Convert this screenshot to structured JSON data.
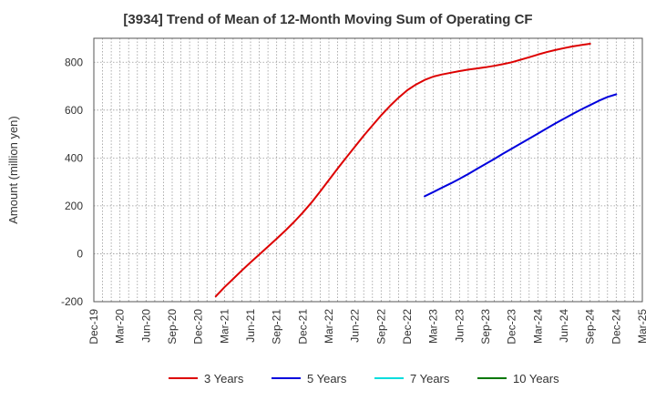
{
  "chart_data": {
    "type": "line",
    "title": "[3934]  Trend of Mean of 12-Month Moving Sum of Operating CF",
    "ylabel": "Amount (million yen)",
    "xlabel": "",
    "ylim": [
      -200,
      900
    ],
    "yticks": [
      -200,
      0,
      200,
      400,
      600,
      800
    ],
    "xticks": [
      "Dec-19",
      "Mar-20",
      "Jun-20",
      "Sep-20",
      "Dec-20",
      "Mar-21",
      "Jun-21",
      "Sep-21",
      "Dec-21",
      "Mar-22",
      "Jun-22",
      "Sep-22",
      "Dec-22",
      "Mar-23",
      "Jun-23",
      "Sep-23",
      "Dec-23",
      "Mar-24",
      "Jun-24",
      "Sep-24",
      "Dec-24",
      "Mar-25"
    ],
    "grid": true,
    "legend_position": "bottom",
    "series": [
      {
        "name": "3 Years",
        "color": "#dd0000",
        "points": [
          [
            "Feb-21",
            -178
          ],
          [
            "Mar-21",
            -140
          ],
          [
            "Apr-21",
            -105
          ],
          [
            "May-21",
            -70
          ],
          [
            "Jun-21",
            -36
          ],
          [
            "Jul-21",
            -3
          ],
          [
            "Aug-21",
            30
          ],
          [
            "Sep-21",
            63
          ],
          [
            "Oct-21",
            97
          ],
          [
            "Nov-21",
            133
          ],
          [
            "Dec-21",
            172
          ],
          [
            "Jan-22",
            214
          ],
          [
            "Feb-22",
            260
          ],
          [
            "Mar-22",
            308
          ],
          [
            "Apr-22",
            356
          ],
          [
            "May-22",
            402
          ],
          [
            "Jun-22",
            448
          ],
          [
            "Jul-22",
            493
          ],
          [
            "Aug-22",
            536
          ],
          [
            "Sep-22",
            578
          ],
          [
            "Oct-22",
            617
          ],
          [
            "Nov-22",
            652
          ],
          [
            "Dec-22",
            683
          ],
          [
            "Jan-23",
            707
          ],
          [
            "Feb-23",
            726
          ],
          [
            "Mar-23",
            740
          ],
          [
            "Apr-23",
            749
          ],
          [
            "May-23",
            756
          ],
          [
            "Jun-23",
            763
          ],
          [
            "Jul-23",
            769
          ],
          [
            "Aug-23",
            774
          ],
          [
            "Sep-23",
            779
          ],
          [
            "Oct-23",
            785
          ],
          [
            "Nov-23",
            792
          ],
          [
            "Dec-23",
            800
          ],
          [
            "Jan-24",
            810
          ],
          [
            "Feb-24",
            821
          ],
          [
            "Mar-24",
            832
          ],
          [
            "Apr-24",
            842
          ],
          [
            "May-24",
            851
          ],
          [
            "Jun-24",
            859
          ],
          [
            "Jul-24",
            866
          ],
          [
            "Aug-24",
            872
          ],
          [
            "Sep-24",
            877
          ]
        ]
      },
      {
        "name": "5 Years",
        "color": "#0000dd",
        "points": [
          [
            "Feb-23",
            240
          ],
          [
            "Mar-23",
            258
          ],
          [
            "Apr-23",
            276
          ],
          [
            "May-23",
            294
          ],
          [
            "Jun-23",
            313
          ],
          [
            "Jul-23",
            333
          ],
          [
            "Aug-23",
            354
          ],
          [
            "Sep-23",
            375
          ],
          [
            "Oct-23",
            396
          ],
          [
            "Nov-23",
            418
          ],
          [
            "Dec-23",
            439
          ],
          [
            "Jan-24",
            460
          ],
          [
            "Feb-24",
            481
          ],
          [
            "Mar-24",
            502
          ],
          [
            "Apr-24",
            523
          ],
          [
            "May-24",
            544
          ],
          [
            "Jun-24",
            564
          ],
          [
            "Jul-24",
            584
          ],
          [
            "Aug-24",
            603
          ],
          [
            "Sep-24",
            621
          ],
          [
            "Oct-24",
            639
          ],
          [
            "Nov-24",
            655
          ],
          [
            "Dec-24",
            666
          ]
        ]
      },
      {
        "name": "7 Years",
        "color": "#00dddd",
        "points": []
      },
      {
        "name": "10 Years",
        "color": "#007700",
        "points": []
      }
    ]
  }
}
